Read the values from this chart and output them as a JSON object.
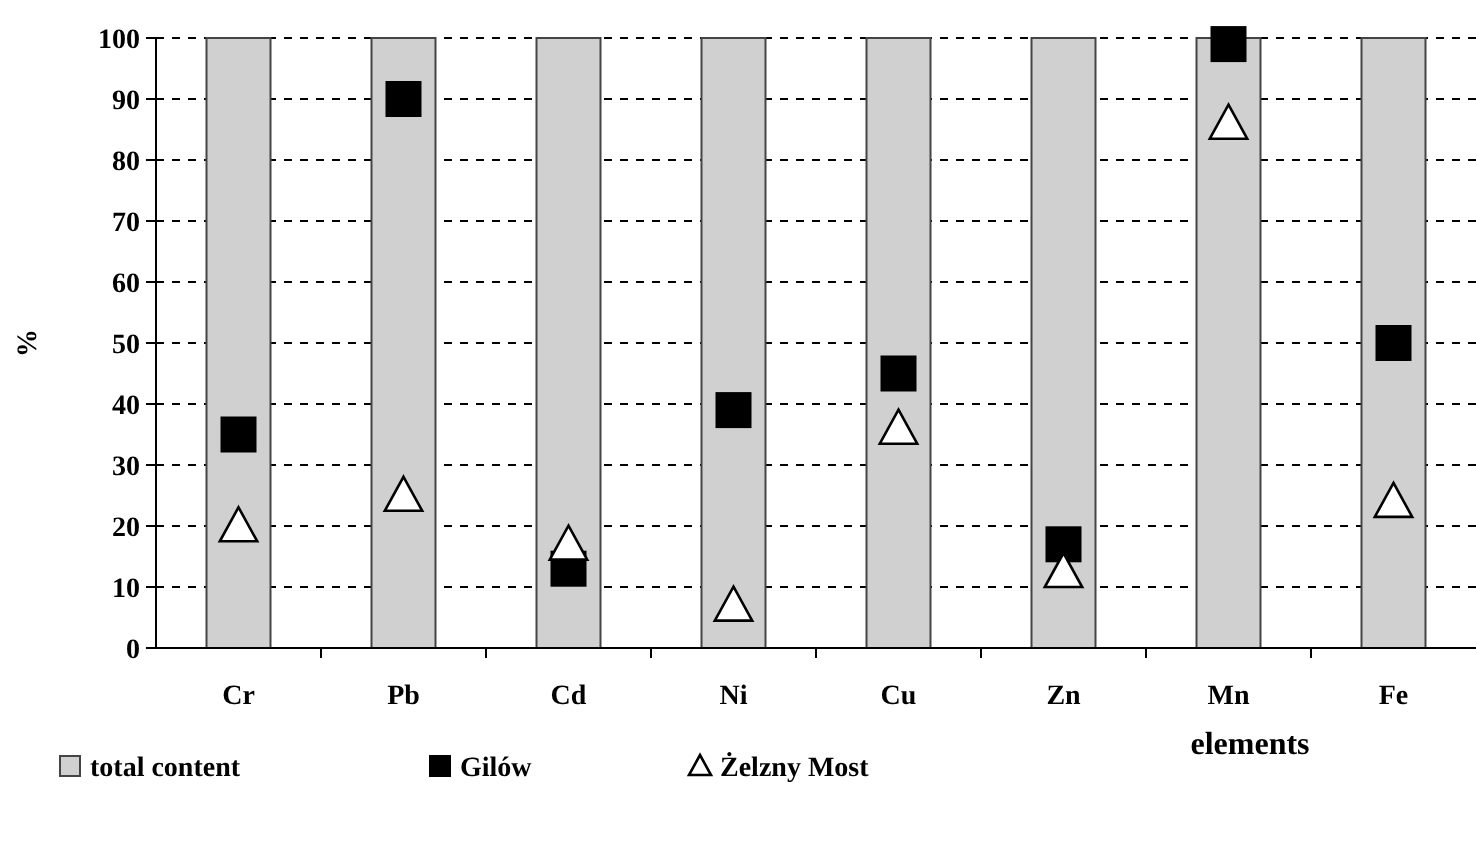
{
  "chart_data": {
    "type": "bar",
    "ylabel": "%",
    "xlabel": "elements",
    "categories": [
      "Cr",
      "Pb",
      "Cd",
      "Ni",
      "Cu",
      "Zn",
      "Mn",
      "Fe"
    ],
    "series": [
      {
        "name": "total content",
        "color": "#d0d0d0",
        "values": [
          100,
          100,
          100,
          100,
          100,
          100,
          100,
          100
        ]
      },
      {
        "name": "Gilów",
        "type": "scatter",
        "marker": "square",
        "color": "#000000",
        "values": [
          35,
          90,
          13,
          39,
          45,
          17,
          99,
          50
        ]
      },
      {
        "name": "Żelzny Most",
        "type": "scatter",
        "marker": "triangle",
        "color": "#ffffff",
        "values": [
          20,
          25,
          17,
          7,
          36,
          12.5,
          86,
          24
        ]
      }
    ],
    "ylim": [
      0,
      100
    ],
    "yticks": [
      0,
      10,
      20,
      30,
      40,
      50,
      60,
      70,
      80,
      90,
      100
    ],
    "grid": "y",
    "legend": "bottom"
  }
}
